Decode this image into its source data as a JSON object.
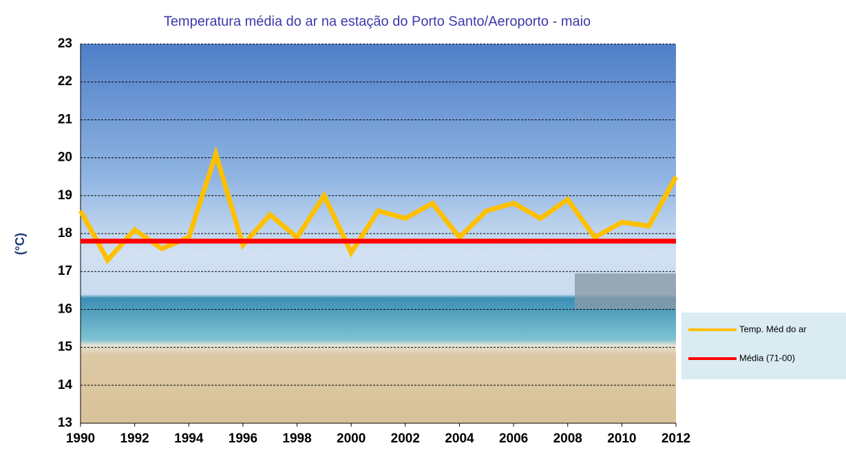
{
  "chart_data": {
    "type": "line",
    "title": "Temperatura média do ar na estação do Porto Santo/Aeroporto - maio",
    "y_label": "(°C)",
    "x": [
      1990,
      1991,
      1992,
      1993,
      1994,
      1995,
      1996,
      1997,
      1998,
      1999,
      2000,
      2001,
      2002,
      2003,
      2004,
      2005,
      2006,
      2007,
      2008,
      2009,
      2010,
      2011,
      2012
    ],
    "series": [
      {
        "name": "Temp. Méd do ar",
        "color": "#ffc000",
        "values": [
          18.6,
          17.3,
          18.1,
          17.6,
          17.9,
          20.1,
          17.7,
          18.5,
          17.9,
          19.0,
          17.5,
          18.6,
          18.4,
          18.8,
          17.9,
          18.6,
          18.8,
          18.4,
          18.9,
          17.9,
          18.3,
          18.2,
          19.5
        ]
      },
      {
        "name": "Média (71-00)",
        "color": "#ff0000",
        "values": [
          17.8,
          17.8,
          17.8,
          17.8,
          17.8,
          17.8,
          17.8,
          17.8,
          17.8,
          17.8,
          17.8,
          17.8,
          17.8,
          17.8,
          17.8,
          17.8,
          17.8,
          17.8,
          17.8,
          17.8,
          17.8,
          17.8,
          17.8
        ]
      }
    ],
    "xlim": [
      1990,
      2012
    ],
    "xticks": [
      1990,
      1992,
      1994,
      1996,
      1998,
      2000,
      2002,
      2004,
      2006,
      2008,
      2010,
      2012
    ],
    "ylim": [
      13,
      23
    ],
    "yticks": [
      13,
      14,
      15,
      16,
      17,
      18,
      19,
      20,
      21,
      22,
      23
    ],
    "grid": true,
    "legend": "right"
  }
}
